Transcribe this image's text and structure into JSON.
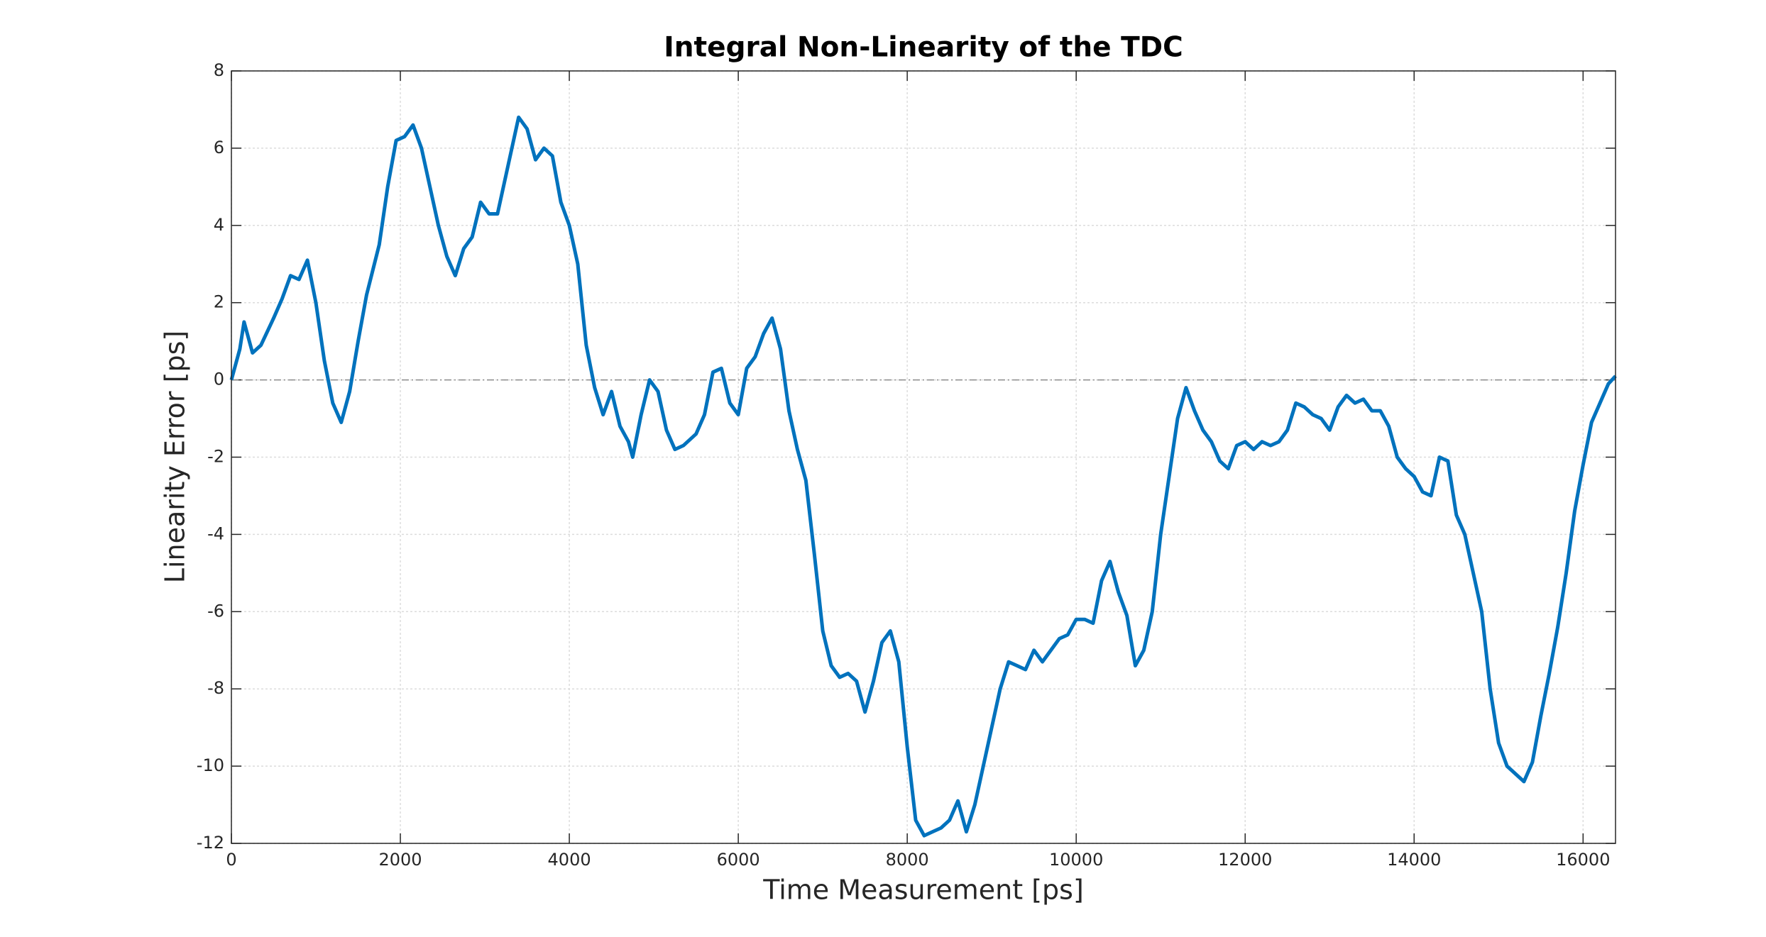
{
  "chart_data": {
    "type": "line",
    "title": "Integral Non-Linearity of the TDC",
    "x_label": "Time Measurement [ps]",
    "y_label": "Linearity Error [ps]",
    "xlim": [
      0,
      16384
    ],
    "ylim": [
      -12,
      8
    ],
    "xticks": [
      0,
      2000,
      4000,
      6000,
      8000,
      10000,
      12000,
      14000,
      16000
    ],
    "yticks": [
      -12,
      -10,
      -8,
      -6,
      -4,
      -2,
      0,
      2,
      4,
      6,
      8
    ],
    "grid": true,
    "reference_line": 0,
    "x": [
      0,
      100,
      150,
      250,
      350,
      500,
      600,
      700,
      800,
      900,
      1000,
      1100,
      1200,
      1300,
      1400,
      1500,
      1600,
      1750,
      1850,
      1950,
      2050,
      2150,
      2250,
      2350,
      2450,
      2550,
      2650,
      2750,
      2850,
      2950,
      3050,
      3150,
      3250,
      3400,
      3500,
      3600,
      3700,
      3800,
      3900,
      4000,
      4100,
      4200,
      4300,
      4400,
      4500,
      4600,
      4700,
      4750,
      4850,
      4950,
      5050,
      5150,
      5250,
      5350,
      5500,
      5600,
      5700,
      5800,
      5900,
      6000,
      6100,
      6200,
      6300,
      6400,
      6500,
      6600,
      6700,
      6800,
      6900,
      7000,
      7100,
      7200,
      7300,
      7400,
      7500,
      7600,
      7700,
      7800,
      7900,
      8000,
      8100,
      8200,
      8300,
      8400,
      8500,
      8600,
      8700,
      8800,
      8900,
      9000,
      9100,
      9200,
      9300,
      9400,
      9500,
      9600,
      9700,
      9800,
      9900,
      10000,
      10100,
      10200,
      10300,
      10400,
      10500,
      10600,
      10700,
      10800,
      10900,
      11000,
      11100,
      11200,
      11300,
      11400,
      11500,
      11600,
      11700,
      11800,
      11900,
      12000,
      12100,
      12200,
      12300,
      12400,
      12500,
      12600,
      12700,
      12800,
      12900,
      13000,
      13100,
      13200,
      13300,
      13400,
      13500,
      13600,
      13700,
      13800,
      13900,
      14000,
      14100,
      14200,
      14300,
      14400,
      14500,
      14600,
      14700,
      14800,
      14900,
      15000,
      15100,
      15200,
      15300,
      15400,
      15500,
      15600,
      15700,
      15800,
      15900,
      16000,
      16100,
      16200,
      16300,
      16384
    ],
    "series": [
      {
        "color": "#0072bd",
        "values": [
          0,
          0.8,
          1.5,
          0.7,
          0.9,
          1.6,
          2.1,
          2.7,
          2.6,
          3.1,
          2.0,
          0.5,
          -0.6,
          -1.1,
          -0.3,
          1.0,
          2.2,
          3.5,
          5.0,
          6.2,
          6.3,
          6.6,
          6.0,
          5.0,
          4.0,
          3.2,
          2.7,
          3.4,
          3.7,
          4.6,
          4.3,
          4.3,
          5.3,
          6.8,
          6.5,
          5.7,
          6.0,
          5.8,
          4.6,
          4.0,
          3.0,
          0.9,
          -0.2,
          -0.9,
          -0.3,
          -1.2,
          -1.6,
          -2.0,
          -0.9,
          0.0,
          -0.3,
          -1.3,
          -1.8,
          -1.7,
          -1.4,
          -0.9,
          0.2,
          0.3,
          -0.6,
          -0.9,
          0.3,
          0.6,
          1.2,
          1.6,
          0.8,
          -0.8,
          -1.8,
          -2.6,
          -4.5,
          -6.5,
          -7.4,
          -7.7,
          -7.6,
          -7.8,
          -8.6,
          -7.8,
          -6.8,
          -6.5,
          -7.3,
          -9.5,
          -11.4,
          -11.8,
          -11.7,
          -11.6,
          -11.4,
          -10.9,
          -11.7,
          -11.0,
          -10.0,
          -9.0,
          -8.0,
          -7.3,
          -7.4,
          -7.5,
          -7.0,
          -7.3,
          -7.0,
          -6.7,
          -6.6,
          -6.2,
          -6.2,
          -6.3,
          -5.2,
          -4.7,
          -5.5,
          -6.1,
          -7.4,
          -7.0,
          -6.0,
          -4.0,
          -2.5,
          -1.0,
          -0.2,
          -0.8,
          -1.3,
          -1.6,
          -2.1,
          -2.3,
          -1.7,
          -1.6,
          -1.8,
          -1.6,
          -1.7,
          -1.6,
          -1.3,
          -0.6,
          -0.7,
          -0.9,
          -1.0,
          -1.3,
          -0.7,
          -0.4,
          -0.6,
          -0.5,
          -0.8,
          -0.8,
          -1.2,
          -2.0,
          -2.3,
          -2.5,
          -2.9,
          -3.0,
          -2.0,
          -2.1,
          -3.5,
          -4.0,
          -5.0,
          -6.0,
          -8.0,
          -9.4,
          -10.0,
          -10.2,
          -10.4,
          -9.9,
          -8.7,
          -7.6,
          -6.4,
          -5.0,
          -3.4,
          -2.2,
          -1.1,
          -0.6,
          -0.1,
          0.1
        ]
      }
    ]
  }
}
